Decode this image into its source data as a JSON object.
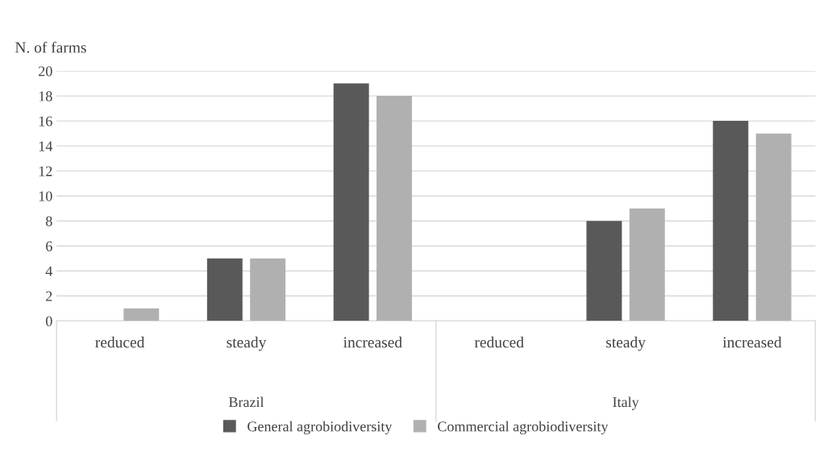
{
  "chart_data": {
    "type": "bar",
    "ylabel": "N. of farms",
    "categories": [
      "reduced",
      "steady",
      "increased",
      "reduced",
      "steady",
      "increased"
    ],
    "annotations": [
      "Brazil",
      "Italy"
    ],
    "series": [
      {
        "name": "General agrobiodiversity",
        "color": "#595959",
        "values": [
          0,
          5,
          19,
          0,
          8,
          16
        ]
      },
      {
        "name": "Commercial agrobiodiversity",
        "color": "#b0b0b0",
        "values": [
          1,
          5,
          18,
          0,
          9,
          15
        ]
      }
    ],
    "ylim": [
      0,
      20
    ],
    "yticks": [
      0,
      2,
      4,
      6,
      8,
      10,
      12,
      14,
      16,
      18,
      20
    ],
    "grid": "y",
    "legend": "bottom"
  }
}
